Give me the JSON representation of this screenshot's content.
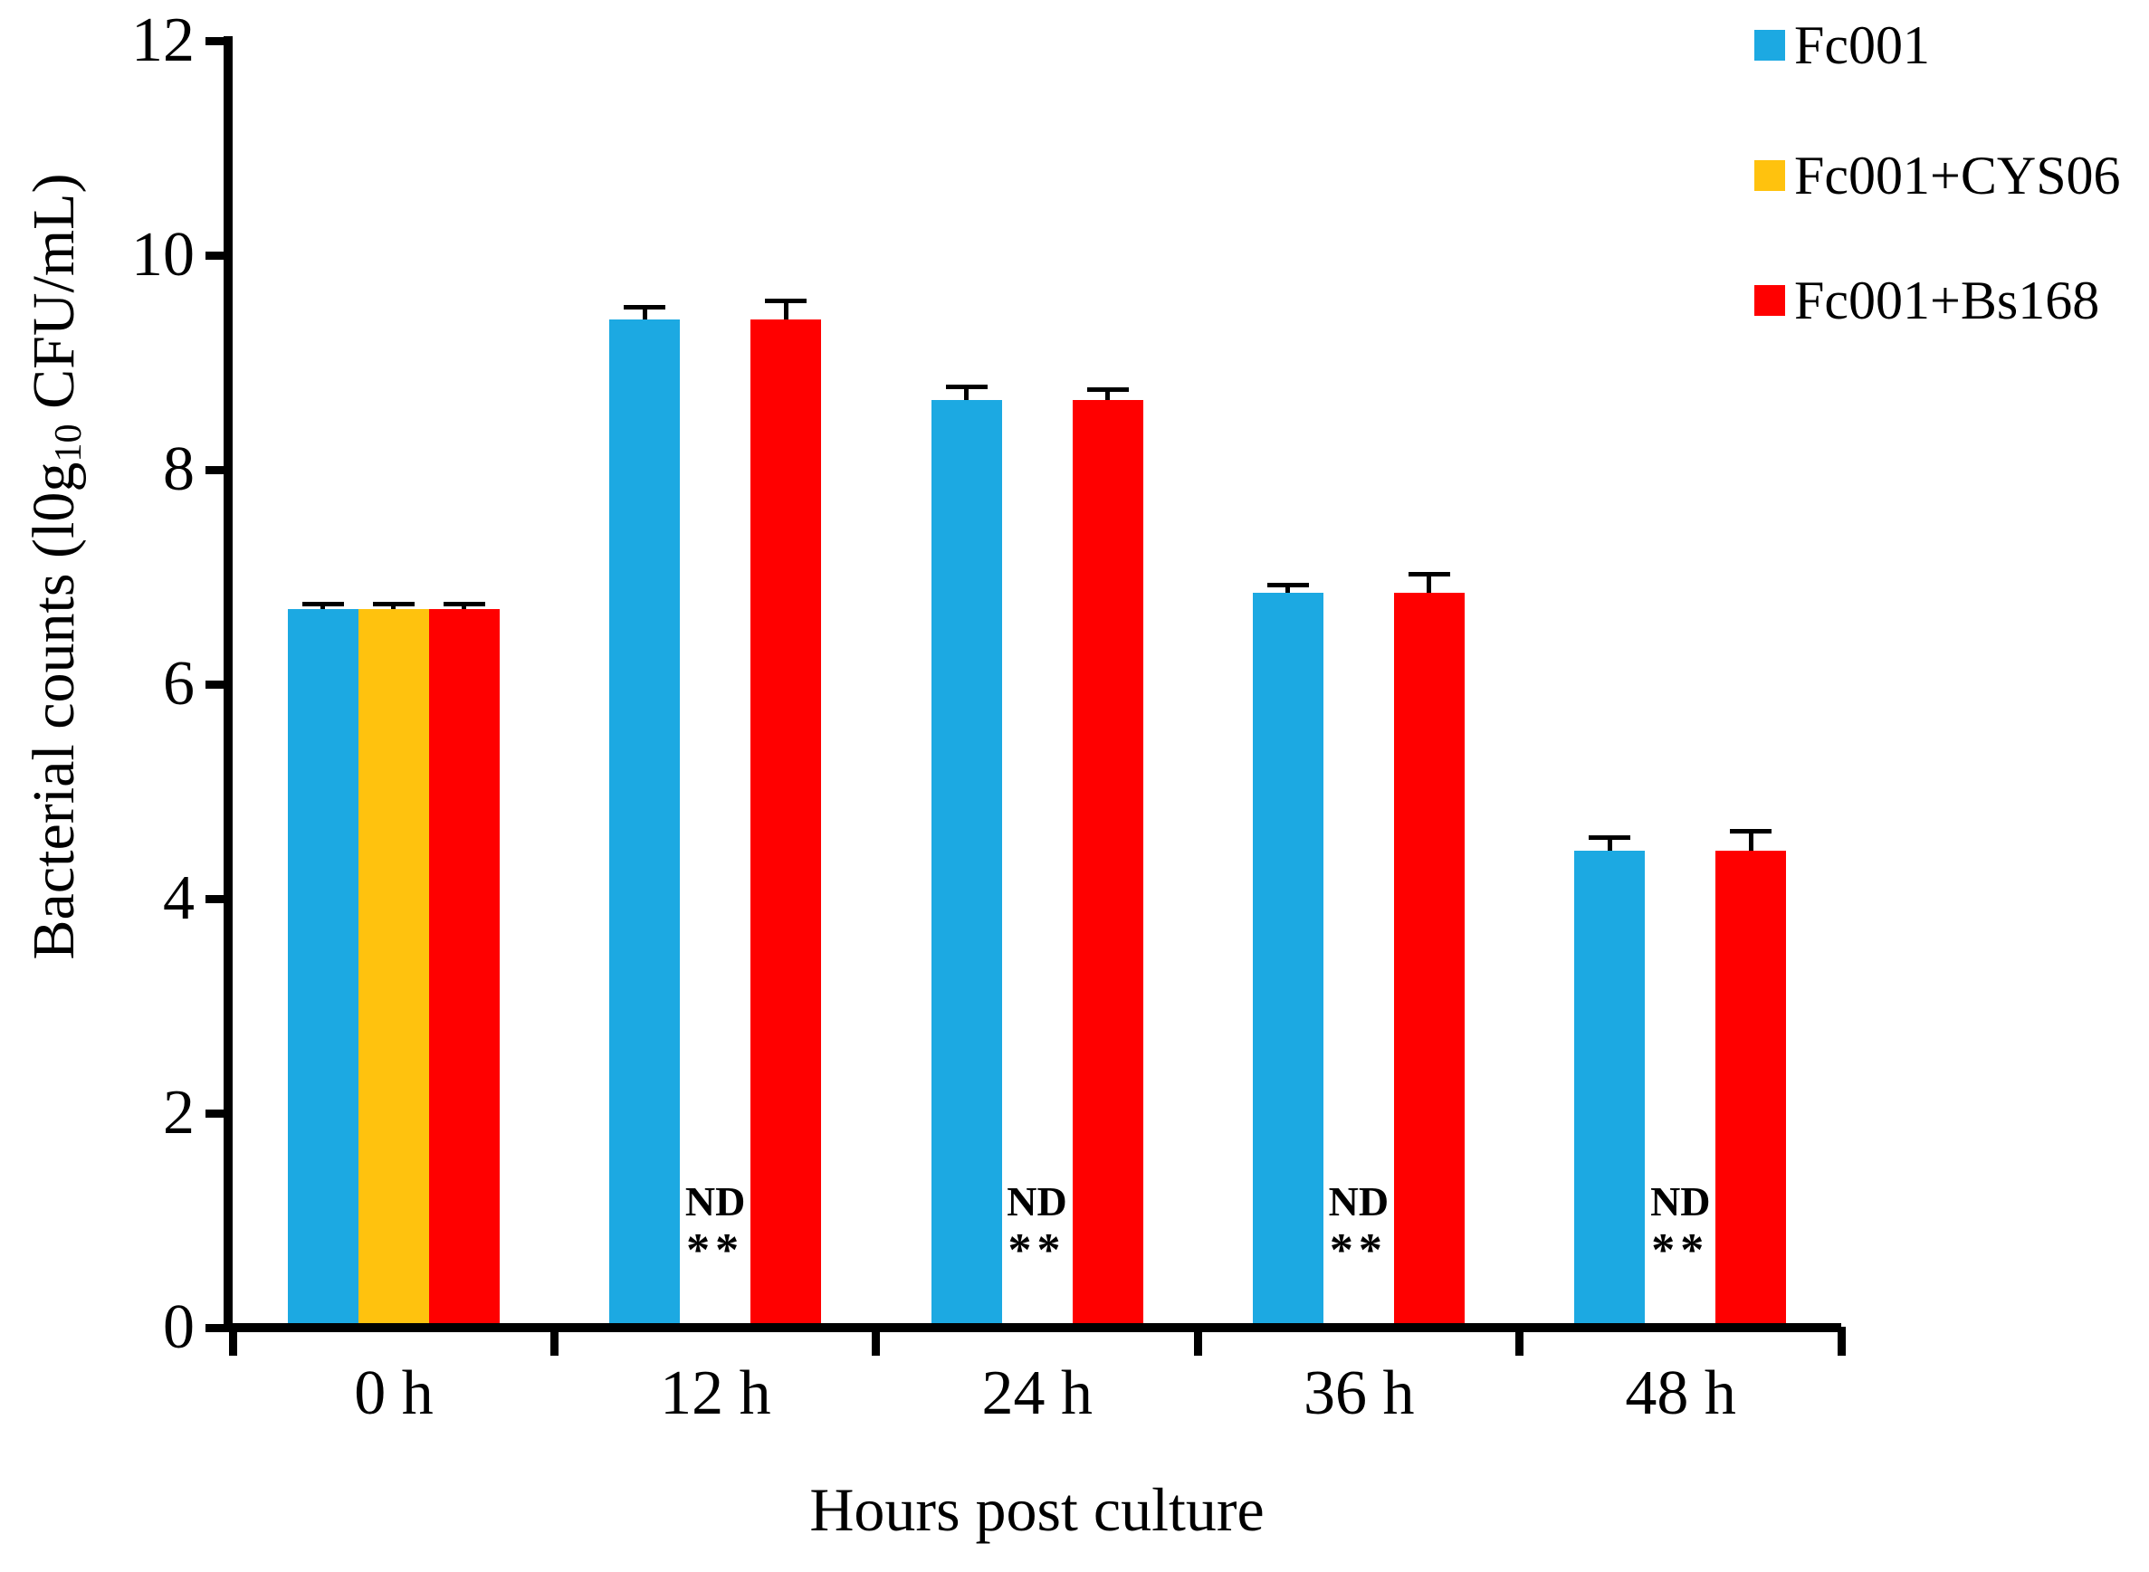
{
  "chart_data": {
    "type": "bar",
    "title": "",
    "xlabel": "Hours post culture",
    "ylabel": "Bacterial counts (l0g10 CFU/mL)",
    "ylabel_parts": {
      "prefix": "Bacterial counts (l0g",
      "subscript": "10",
      "suffix": " CFU/mL)"
    },
    "categories": [
      "0 h",
      "12 h",
      "24 h",
      "36 h",
      "48 h"
    ],
    "y_ticks": [
      0,
      2,
      4,
      6,
      8,
      10,
      12
    ],
    "ylim": [
      0,
      12
    ],
    "grid": false,
    "legend_position": "top-right",
    "axis_color": "#000000",
    "series": [
      {
        "name": "Fc001",
        "color": "#1CA9E2",
        "values": [
          6.7,
          9.4,
          8.65,
          6.85,
          4.45
        ],
        "errors": [
          0.05,
          0.12,
          0.13,
          0.08,
          0.12
        ]
      },
      {
        "name": "Fc001+CYS06",
        "color": "#FFC20E",
        "values": [
          6.7,
          null,
          null,
          null,
          null
        ],
        "errors": [
          0.05,
          null,
          null,
          null,
          null
        ],
        "nd_marker": {
          "label": "ND",
          "stars": "**",
          "categories": [
            "12 h",
            "24 h",
            "36 h",
            "48 h"
          ]
        }
      },
      {
        "name": "Fc001+Bs168",
        "color": "#FF0000",
        "values": [
          6.7,
          9.4,
          8.65,
          6.85,
          4.45
        ],
        "errors": [
          0.05,
          0.18,
          0.1,
          0.18,
          0.18
        ]
      }
    ]
  }
}
